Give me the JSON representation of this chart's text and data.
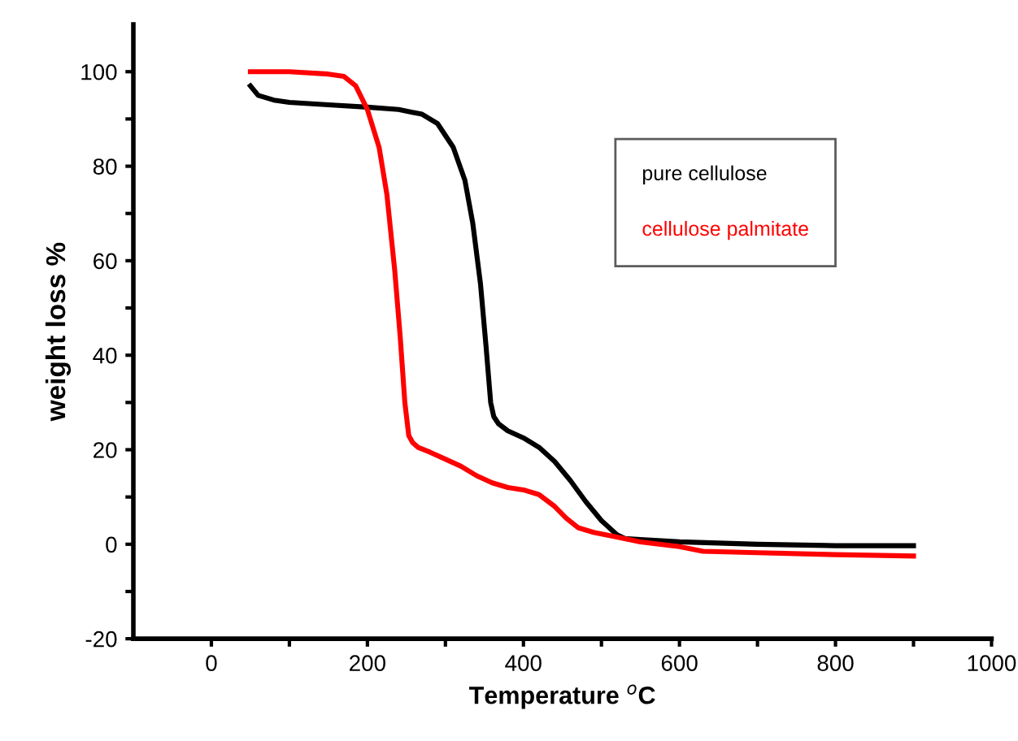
{
  "chart_data": {
    "type": "line",
    "xlabel": "Temperature $^{o}$C",
    "ylabel": "weight loss %",
    "xlim": [
      -100,
      1000
    ],
    "ylim": [
      -20,
      110
    ],
    "xticks": [
      0,
      {
        "value": 100,
        "label": null
      },
      200,
      {
        "value": 300,
        "label": null
      },
      400,
      {
        "value": 500,
        "label": null
      },
      600,
      {
        "value": 700,
        "label": null
      },
      800,
      {
        "value": 900,
        "label": null
      },
      1000
    ],
    "yticks": [
      -20,
      {
        "value": -10,
        "label": null
      },
      0,
      {
        "value": 10,
        "label": null
      },
      20,
      {
        "value": 30,
        "label": null
      },
      40,
      {
        "value": 50,
        "label": null
      },
      60,
      {
        "value": 70,
        "label": null
      },
      80,
      {
        "value": 90,
        "label": null
      },
      100
    ],
    "grid": false,
    "legend": "top right",
    "marker": "none",
    "line_style": "solid",
    "series": [
      {
        "name": "pure cellulose",
        "color": "#000000",
        "x": [
          50,
          60,
          80,
          100,
          150,
          200,
          240,
          270,
          290,
          310,
          325,
          335,
          345,
          352,
          358,
          362,
          368,
          380,
          400,
          420,
          440,
          460,
          480,
          500,
          520,
          530,
          550,
          600,
          700,
          800,
          900
        ],
        "values": [
          97,
          95,
          94,
          93.5,
          93,
          92.5,
          92,
          91,
          89,
          84,
          77,
          68,
          55,
          42,
          30,
          27,
          25.5,
          24,
          22.5,
          20.5,
          17.5,
          13.5,
          9,
          5,
          2,
          1.2,
          1,
          0.5,
          0,
          -0.3,
          -0.3
        ]
      },
      {
        "name": "cellulose palmitate",
        "color": "#ff0000",
        "x": [
          50,
          100,
          150,
          170,
          185,
          200,
          215,
          225,
          235,
          242,
          248,
          253,
          258,
          265,
          280,
          300,
          320,
          340,
          360,
          380,
          400,
          420,
          440,
          455,
          470,
          490,
          520,
          550,
          600,
          630,
          700,
          800,
          900
        ],
        "values": [
          100,
          100,
          99.5,
          99,
          97,
          92,
          84,
          74,
          58,
          44,
          30,
          23,
          21.5,
          20.5,
          19.5,
          18,
          16.5,
          14.5,
          13,
          12,
          11.5,
          10.5,
          8,
          5.5,
          3.5,
          2.5,
          1.5,
          0.5,
          -0.5,
          -1.5,
          -1.8,
          -2.2,
          -2.5
        ]
      }
    ]
  }
}
